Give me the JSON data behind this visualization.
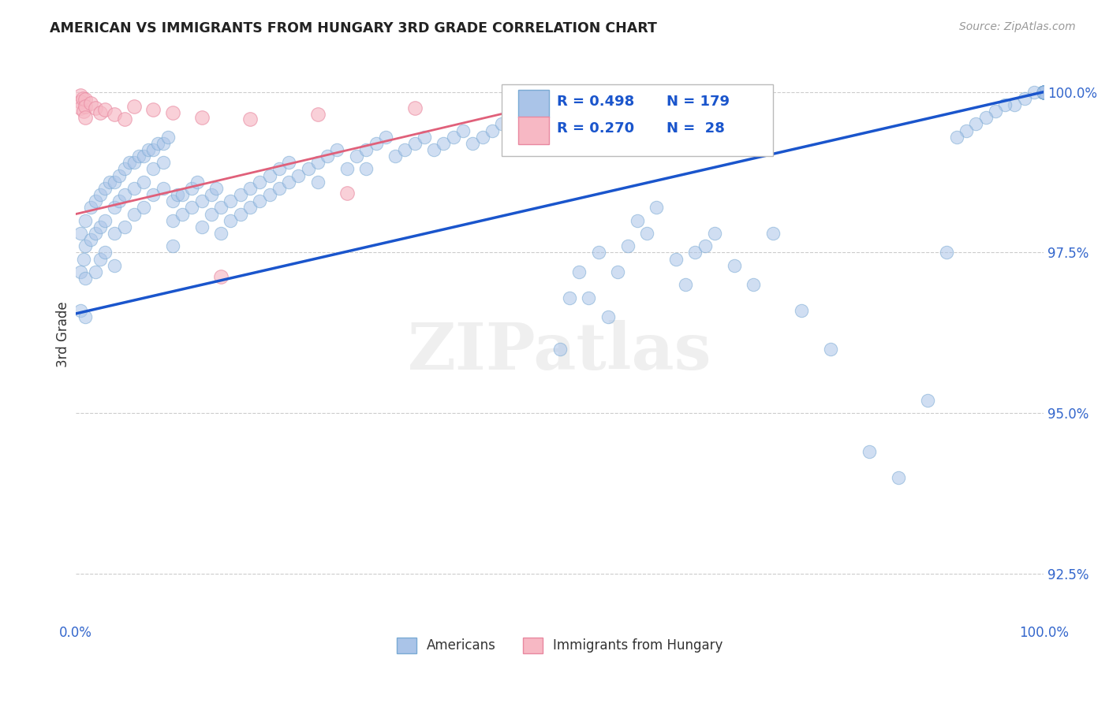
{
  "title": "AMERICAN VS IMMIGRANTS FROM HUNGARY 3RD GRADE CORRELATION CHART",
  "source": "Source: ZipAtlas.com",
  "ylabel": "3rd Grade",
  "xmin": 0.0,
  "xmax": 1.0,
  "ymin": 0.9175,
  "ymax": 1.007,
  "yticks": [
    0.925,
    0.95,
    0.975,
    1.0
  ],
  "ytick_labels": [
    "92.5%",
    "95.0%",
    "97.5%",
    "100.0%"
  ],
  "xticks": [
    0.0,
    0.25,
    0.5,
    0.75,
    1.0
  ],
  "xtick_labels": [
    "0.0%",
    "",
    "",
    "",
    "100.0%"
  ],
  "blue_color": "#aac4e8",
  "blue_edge": "#7aaad4",
  "pink_color": "#f7b8c4",
  "pink_edge": "#e888a0",
  "trendline_blue": "#1a55cc",
  "trendline_pink": "#e0607a",
  "title_color": "#222222",
  "source_color": "#999999",
  "axis_label_color": "#3366CC",
  "watermark_text": "ZIPatlas",
  "legend_blue_r": "R = 0.498",
  "legend_blue_n": "N = 179",
  "legend_pink_r": "R = 0.270",
  "legend_pink_n": "N =  28",
  "blue_trend": [
    0.0,
    1.0,
    0.9655,
    1.0
  ],
  "pink_trend": [
    0.0,
    0.48,
    0.981,
    0.998
  ],
  "americans_x": [
    0.005,
    0.005,
    0.005,
    0.008,
    0.01,
    0.01,
    0.01,
    0.01,
    0.015,
    0.015,
    0.02,
    0.02,
    0.02,
    0.025,
    0.025,
    0.025,
    0.03,
    0.03,
    0.03,
    0.035,
    0.04,
    0.04,
    0.04,
    0.04,
    0.045,
    0.045,
    0.05,
    0.05,
    0.05,
    0.055,
    0.06,
    0.06,
    0.06,
    0.065,
    0.07,
    0.07,
    0.07,
    0.075,
    0.08,
    0.08,
    0.08,
    0.085,
    0.09,
    0.09,
    0.09,
    0.095,
    0.1,
    0.1,
    0.1,
    0.105,
    0.11,
    0.11,
    0.12,
    0.12,
    0.125,
    0.13,
    0.13,
    0.14,
    0.14,
    0.145,
    0.15,
    0.15,
    0.16,
    0.16,
    0.17,
    0.17,
    0.18,
    0.18,
    0.19,
    0.19,
    0.2,
    0.2,
    0.21,
    0.21,
    0.22,
    0.22,
    0.23,
    0.24,
    0.25,
    0.25,
    0.26,
    0.27,
    0.28,
    0.29,
    0.3,
    0.3,
    0.31,
    0.32,
    0.33,
    0.34,
    0.35,
    0.36,
    0.37,
    0.38,
    0.39,
    0.4,
    0.41,
    0.42,
    0.43,
    0.44,
    0.45,
    0.46,
    0.47,
    0.48,
    0.49,
    0.5,
    0.51,
    0.52,
    0.53,
    0.54,
    0.55,
    0.56,
    0.57,
    0.58,
    0.59,
    0.6,
    0.62,
    0.63,
    0.64,
    0.65,
    0.66,
    0.68,
    0.7,
    0.72,
    0.75,
    0.78,
    0.82,
    0.85,
    0.88,
    0.9,
    1.0,
    1.0,
    1.0,
    1.0,
    1.0,
    1.0,
    1.0,
    1.0,
    1.0,
    1.0,
    1.0,
    1.0,
    1.0,
    1.0,
    1.0,
    1.0,
    1.0,
    1.0,
    1.0,
    1.0,
    1.0,
    1.0,
    1.0,
    1.0,
    1.0,
    1.0,
    1.0,
    1.0,
    1.0,
    1.0,
    0.99,
    0.98,
    0.97,
    0.96,
    0.95,
    0.94,
    0.93,
    0.92,
    0.91
  ],
  "americans_y": [
    0.978,
    0.972,
    0.966,
    0.974,
    0.98,
    0.976,
    0.971,
    0.965,
    0.982,
    0.977,
    0.983,
    0.978,
    0.972,
    0.984,
    0.979,
    0.974,
    0.985,
    0.98,
    0.975,
    0.986,
    0.986,
    0.982,
    0.978,
    0.973,
    0.987,
    0.983,
    0.988,
    0.984,
    0.979,
    0.989,
    0.989,
    0.985,
    0.981,
    0.99,
    0.99,
    0.986,
    0.982,
    0.991,
    0.991,
    0.988,
    0.984,
    0.992,
    0.992,
    0.989,
    0.985,
    0.993,
    0.983,
    0.98,
    0.976,
    0.984,
    0.984,
    0.981,
    0.985,
    0.982,
    0.986,
    0.983,
    0.979,
    0.984,
    0.981,
    0.985,
    0.982,
    0.978,
    0.983,
    0.98,
    0.984,
    0.981,
    0.985,
    0.982,
    0.986,
    0.983,
    0.987,
    0.984,
    0.988,
    0.985,
    0.989,
    0.986,
    0.987,
    0.988,
    0.989,
    0.986,
    0.99,
    0.991,
    0.988,
    0.99,
    0.991,
    0.988,
    0.992,
    0.993,
    0.99,
    0.991,
    0.992,
    0.993,
    0.991,
    0.992,
    0.993,
    0.994,
    0.992,
    0.993,
    0.994,
    0.995,
    0.993,
    0.994,
    0.994,
    0.995,
    0.994,
    0.96,
    0.968,
    0.972,
    0.968,
    0.975,
    0.965,
    0.972,
    0.976,
    0.98,
    0.978,
    0.982,
    0.974,
    0.97,
    0.975,
    0.976,
    0.978,
    0.973,
    0.97,
    0.978,
    0.966,
    0.96,
    0.944,
    0.94,
    0.952,
    0.975,
    1.0,
    1.0,
    1.0,
    1.0,
    1.0,
    1.0,
    1.0,
    1.0,
    1.0,
    1.0,
    1.0,
    1.0,
    1.0,
    1.0,
    1.0,
    1.0,
    1.0,
    1.0,
    1.0,
    1.0,
    1.0,
    1.0,
    1.0,
    1.0,
    1.0,
    1.0,
    1.0,
    1.0,
    1.0,
    1.0,
    1.0,
    0.999,
    0.998,
    0.998,
    0.997,
    0.996,
    0.995,
    0.994,
    0.993
  ],
  "hungary_x": [
    0.005,
    0.005,
    0.005,
    0.007,
    0.008,
    0.01,
    0.01,
    0.01,
    0.015,
    0.02,
    0.025,
    0.03,
    0.04,
    0.05,
    0.06,
    0.08,
    0.1,
    0.13,
    0.18,
    0.25,
    0.35,
    0.48,
    0.15,
    0.28
  ],
  "hungary_y": [
    0.9995,
    0.9985,
    0.9975,
    0.999,
    0.997,
    0.9988,
    0.9978,
    0.996,
    0.9982,
    0.9975,
    0.9968,
    0.9972,
    0.9965,
    0.9958,
    0.9978,
    0.9972,
    0.9968,
    0.996,
    0.9958,
    0.9965,
    0.9975,
    0.9965,
    0.9712,
    0.9842
  ]
}
